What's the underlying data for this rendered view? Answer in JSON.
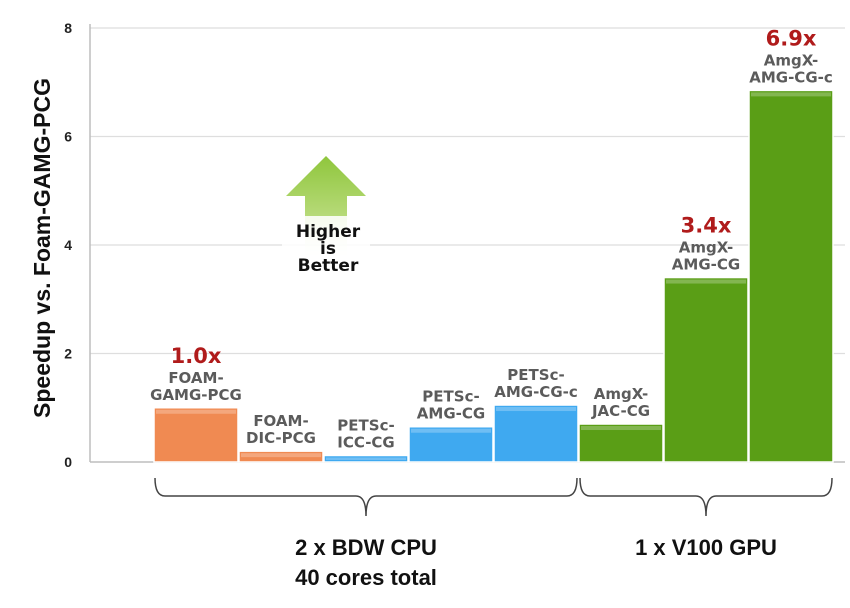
{
  "chart_data": {
    "type": "bar",
    "ylabel": "Speedup vs. Foam-GAMG-PCG",
    "ylim": [
      0,
      8
    ],
    "yticks": [
      0,
      2,
      4,
      6,
      8
    ],
    "grid": true,
    "bars": [
      {
        "label": [
          "FOAM-",
          "GAMG-PCG"
        ],
        "value": 1.0,
        "speedup": "1.0x",
        "color": "#f08a52",
        "group": "cpu"
      },
      {
        "label": [
          "FOAM-",
          "DIC-PCG"
        ],
        "value": 0.2,
        "speedup": "",
        "color": "#f08a52",
        "group": "cpu"
      },
      {
        "label": [
          "PETSc-",
          "ICC-CG"
        ],
        "value": 0.12,
        "speedup": "",
        "color": "#3fa9f0",
        "group": "cpu"
      },
      {
        "label": [
          "PETSc-",
          "AMG-CG"
        ],
        "value": 0.65,
        "speedup": "",
        "color": "#3fa9f0",
        "group": "cpu"
      },
      {
        "label": [
          "PETSc-",
          "AMG-CG-c"
        ],
        "value": 1.05,
        "speedup": "",
        "color": "#3fa9f0",
        "group": "cpu"
      },
      {
        "label": [
          "AmgX-",
          "JAC-CG"
        ],
        "value": 0.7,
        "speedup": "",
        "color": "#5a9e16",
        "group": "gpu"
      },
      {
        "label": [
          "AmgX-",
          "AMG-CG"
        ],
        "value": 3.4,
        "speedup": "3.4x",
        "color": "#5a9e16",
        "group": "gpu"
      },
      {
        "label": [
          "AmgX-",
          "AMG-CG-c"
        ],
        "value": 6.85,
        "speedup": "6.9x",
        "color": "#5a9e16",
        "group": "gpu"
      }
    ],
    "groups": [
      {
        "id": "cpu",
        "label": [
          "2 x BDW CPU",
          "40 cores total"
        ]
      },
      {
        "id": "gpu",
        "label": [
          "1 x V100 GPU"
        ]
      }
    ],
    "annotation": {
      "lines": [
        "Higher",
        "is",
        "Better"
      ],
      "arrow_color": "#7dbb2c"
    }
  }
}
